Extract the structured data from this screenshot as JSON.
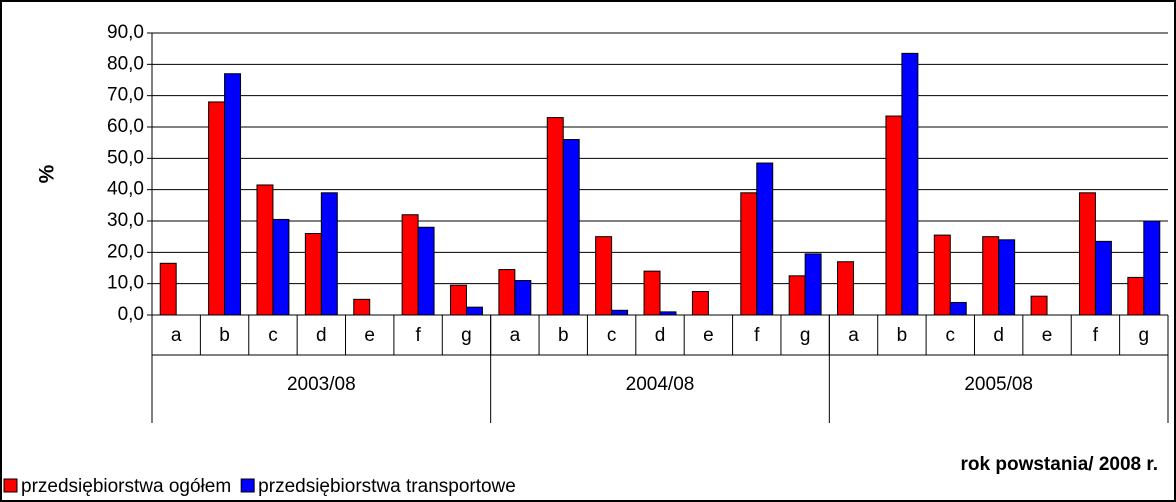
{
  "chart_data": {
    "type": "bar",
    "y_label": "%",
    "x_label": "rok powstania/ 2008 r.",
    "groups": [
      "2003/08",
      "2004/08",
      "2005/08"
    ],
    "categories": [
      "a",
      "b",
      "c",
      "d",
      "e",
      "f",
      "g",
      "a",
      "b",
      "c",
      "d",
      "e",
      "f",
      "g",
      "a",
      "b",
      "c",
      "d",
      "e",
      "f",
      "g"
    ],
    "series": [
      {
        "name": "przedsiębiorstwa ogółem",
        "color": "#ff0000",
        "values": [
          16.5,
          68,
          41.5,
          26,
          5,
          32,
          9.5,
          14.5,
          63,
          25,
          14,
          7.5,
          39,
          12.5,
          17,
          63.5,
          25.5,
          25,
          6,
          39,
          12
        ]
      },
      {
        "name": "przedsiębiorstwa transportowe",
        "color": "#0000ff",
        "values": [
          0,
          77,
          30.5,
          39,
          0,
          28,
          2.5,
          11,
          56,
          1.5,
          1,
          0,
          48.5,
          19.5,
          0,
          83.5,
          4,
          24,
          0,
          23.5,
          30
        ]
      }
    ],
    "ylim": [
      0,
      90
    ],
    "yticks": [
      {
        "value": 0,
        "label": "0,0"
      },
      {
        "value": 10,
        "label": "10,0"
      },
      {
        "value": 20,
        "label": "20,0"
      },
      {
        "value": 30,
        "label": "30,0"
      },
      {
        "value": 40,
        "label": "40,0"
      },
      {
        "value": 50,
        "label": "50,0"
      },
      {
        "value": 60,
        "label": "60,0"
      },
      {
        "value": 70,
        "label": "70,0"
      },
      {
        "value": 80,
        "label": "80,0"
      },
      {
        "value": 90,
        "label": "90,0"
      }
    ],
    "grid": true
  }
}
